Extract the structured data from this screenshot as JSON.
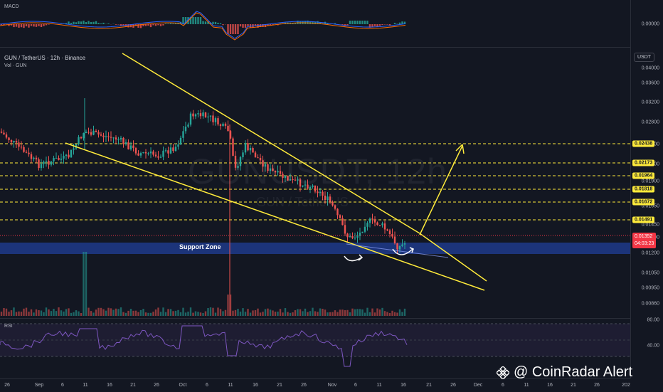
{
  "macd": {
    "title": "MACD",
    "value": "0.00000"
  },
  "main": {
    "symbol_title": "GUN / TetherUS · 12h · Binance",
    "volume_title": "Vol · GUN",
    "unit": "USDT",
    "watermark": "GUNUSDT, 12h",
    "watermark_sub": "GUN / TetherUS",
    "support_label": "Support Zone",
    "axis_ticks": [
      "0.04000",
      "0.03600",
      "0.03200",
      "0.02800",
      "0.02400",
      "0.02100",
      "0.01900",
      "0.01650",
      "0.01450",
      "0.01300",
      "0.01200",
      "0.01050",
      "0.00950",
      "0.00860"
    ],
    "price_levels": [
      "0.02438",
      "0.02173",
      "0.01964",
      "0.01818",
      "0.01672",
      "0.01491"
    ],
    "current_price": "0.01352",
    "countdown": "04:03:23"
  },
  "rsi": {
    "title": "RSI",
    "ticks": [
      "80.00",
      "40.00"
    ]
  },
  "time_axis": [
    "26",
    "Sep",
    "6",
    "11",
    "16",
    "21",
    "26",
    "Oct",
    "6",
    "11",
    "16",
    "21",
    "26",
    "Nov",
    "6",
    "11",
    "16",
    "21",
    "26",
    "Dec",
    "6",
    "11",
    "16",
    "21",
    "26",
    "202"
  ],
  "brand": {
    "name": "@ CoinRadar Alert"
  },
  "colors": {
    "up": "#26a69a",
    "down": "#ef5350",
    "trendline": "#ffeb3b",
    "support": "#1e3a8a"
  }
}
